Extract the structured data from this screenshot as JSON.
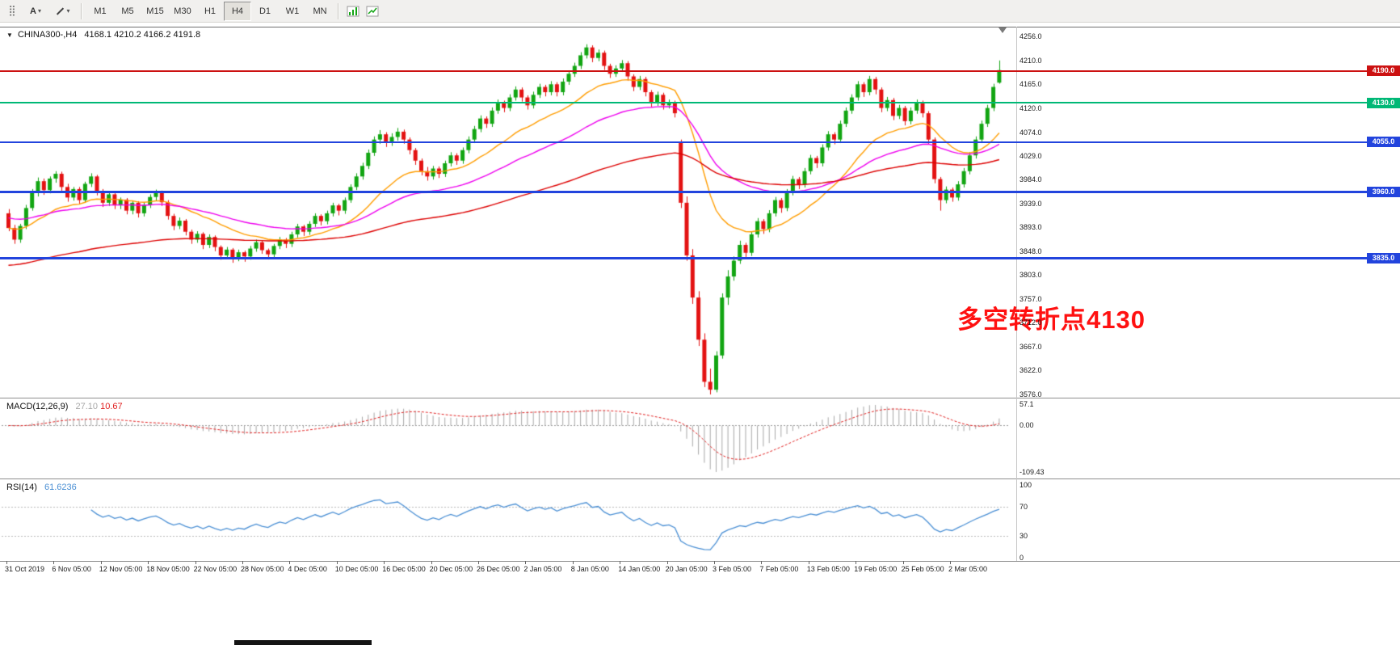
{
  "toolbar": {
    "text_tool_label": "A",
    "timeframes": [
      {
        "label": "M1",
        "active": false
      },
      {
        "label": "M5",
        "active": false
      },
      {
        "label": "M15",
        "active": false
      },
      {
        "label": "M30",
        "active": false
      },
      {
        "label": "H1",
        "active": false
      },
      {
        "label": "H4",
        "active": true
      },
      {
        "label": "D1",
        "active": false
      },
      {
        "label": "W1",
        "active": false
      },
      {
        "label": "MN",
        "active": false
      }
    ]
  },
  "chart_data": {
    "type": "candlestick",
    "symbol": "CHINA300-,H4",
    "ohlc_display": "4168.1 4210.2 4166.2 4191.8",
    "timeframe": "H4",
    "y_axis": {
      "max": 4256.0,
      "min": 3576.0,
      "ticks": [
        4256.0,
        4210.0,
        4165.0,
        4120.0,
        4074.0,
        4029.0,
        3984.0,
        3939.0,
        3893.0,
        3848.0,
        3803.0,
        3757.0,
        3712.0,
        3667.0,
        3622.0,
        3576.0
      ]
    },
    "x_axis": {
      "candles_per_label": 8,
      "labels": [
        "31 Oct 2019",
        "6 Nov 05:00",
        "12 Nov 05:00",
        "18 Nov 05:00",
        "22 Nov 05:00",
        "28 Nov 05:00",
        "4 Dec 05:00",
        "10 Dec 05:00",
        "16 Dec 05:00",
        "20 Dec 05:00",
        "26 Dec 05:00",
        "2 Jan 05:00",
        "8 Jan 05:00",
        "14 Jan 05:00",
        "20 Jan 05:00",
        "3 Feb 05:00",
        "7 Feb 05:00",
        "13 Feb 05:00",
        "19 Feb 05:00",
        "25 Feb 05:00",
        "2 Mar 05:00"
      ]
    },
    "colors": {
      "bull": "#12a512",
      "bear": "#e31212",
      "background": "#ffffff"
    },
    "levels": [
      {
        "price": 4190.0,
        "label": "4190.0",
        "color": "#cc1111",
        "width": 2
      },
      {
        "price": 4130.0,
        "label": "4130.0",
        "color": "#00b876",
        "width": 2
      },
      {
        "price": 4055.0,
        "label": "4055.0",
        "color": "#2244dd",
        "width": 2
      },
      {
        "price": 3960.0,
        "label": "3960.0",
        "color": "#2244dd",
        "width": 3
      },
      {
        "price": 3835.0,
        "label": "3835.0",
        "color": "#2244dd",
        "width": 3
      }
    ],
    "moving_averages": [
      {
        "period": 20,
        "color": "#ff9d00",
        "seed": null
      },
      {
        "period": 45,
        "color": "#ee00ee",
        "seed": 3912
      },
      {
        "period": 110,
        "color": "#dd0000",
        "seed": 3820
      }
    ],
    "annotation": {
      "text": "多空转折点4130",
      "color": "#ff1111"
    },
    "candles": [
      [
        3920,
        3928,
        3886,
        3892
      ],
      [
        3892,
        3898,
        3862,
        3870
      ],
      [
        3870,
        3900,
        3864,
        3896
      ],
      [
        3896,
        3936,
        3890,
        3930
      ],
      [
        3930,
        3966,
        3925,
        3960
      ],
      [
        3960,
        3988,
        3952,
        3981
      ],
      [
        3981,
        3986,
        3955,
        3964
      ],
      [
        3964,
        3990,
        3958,
        3986
      ],
      [
        3986,
        4000,
        3978,
        3995
      ],
      [
        3995,
        3999,
        3962,
        3970
      ],
      [
        3970,
        3976,
        3942,
        3950
      ],
      [
        3950,
        3970,
        3944,
        3966
      ],
      [
        3966,
        3970,
        3938,
        3945
      ],
      [
        3945,
        3980,
        3940,
        3976
      ],
      [
        3976,
        3996,
        3970,
        3990
      ],
      [
        3990,
        3993,
        3954,
        3961
      ],
      [
        3961,
        3966,
        3932,
        3940
      ],
      [
        3940,
        3960,
        3934,
        3956
      ],
      [
        3956,
        3959,
        3928,
        3935
      ],
      [
        3935,
        3950,
        3928,
        3946
      ],
      [
        3946,
        3949,
        3918,
        3925
      ],
      [
        3925,
        3944,
        3918,
        3940
      ],
      [
        3940,
        3943,
        3912,
        3920
      ],
      [
        3920,
        3940,
        3914,
        3936
      ],
      [
        3936,
        3956,
        3930,
        3951
      ],
      [
        3951,
        3965,
        3944,
        3960
      ],
      [
        3960,
        3963,
        3934,
        3941
      ],
      [
        3941,
        3945,
        3908,
        3915
      ],
      [
        3915,
        3919,
        3888,
        3896
      ],
      [
        3896,
        3912,
        3890,
        3906
      ],
      [
        3906,
        3909,
        3878,
        3885
      ],
      [
        3885,
        3889,
        3862,
        3870
      ],
      [
        3870,
        3886,
        3864,
        3881
      ],
      [
        3881,
        3884,
        3852,
        3860
      ],
      [
        3860,
        3880,
        3854,
        3875
      ],
      [
        3875,
        3878,
        3848,
        3856
      ],
      [
        3856,
        3859,
        3832,
        3840
      ],
      [
        3840,
        3856,
        3834,
        3851
      ],
      [
        3851,
        3854,
        3826,
        3835
      ],
      [
        3835,
        3851,
        3829,
        3846
      ],
      [
        3846,
        3849,
        3828,
        3838
      ],
      [
        3838,
        3858,
        3832,
        3853
      ],
      [
        3853,
        3870,
        3847,
        3865
      ],
      [
        3865,
        3868,
        3843,
        3850
      ],
      [
        3850,
        3853,
        3833,
        3842
      ],
      [
        3842,
        3862,
        3836,
        3858
      ],
      [
        3858,
        3875,
        3852,
        3870
      ],
      [
        3870,
        3873,
        3854,
        3862
      ],
      [
        3862,
        3885,
        3856,
        3880
      ],
      [
        3880,
        3900,
        3874,
        3895
      ],
      [
        3895,
        3898,
        3877,
        3885
      ],
      [
        3885,
        3905,
        3879,
        3900
      ],
      [
        3900,
        3920,
        3894,
        3915
      ],
      [
        3915,
        3918,
        3897,
        3905
      ],
      [
        3905,
        3925,
        3899,
        3920
      ],
      [
        3920,
        3940,
        3914,
        3935
      ],
      [
        3935,
        3938,
        3916,
        3925
      ],
      [
        3925,
        3950,
        3919,
        3945
      ],
      [
        3945,
        3975,
        3940,
        3970
      ],
      [
        3970,
        3996,
        3964,
        3990
      ],
      [
        3990,
        4016,
        3984,
        4010
      ],
      [
        4010,
        4041,
        4004,
        4035
      ],
      [
        4035,
        4066,
        4029,
        4060
      ],
      [
        4060,
        4078,
        4052,
        4070
      ],
      [
        4070,
        4074,
        4046,
        4055
      ],
      [
        4055,
        4072,
        4048,
        4065
      ],
      [
        4065,
        4082,
        4058,
        4075
      ],
      [
        4075,
        4079,
        4052,
        4060
      ],
      [
        4060,
        4064,
        4032,
        4040
      ],
      [
        4040,
        4044,
        4012,
        4020
      ],
      [
        4020,
        4024,
        3992,
        4000
      ],
      [
        4000,
        4008,
        3982,
        3990
      ],
      [
        3990,
        4010,
        3984,
        4005
      ],
      [
        4005,
        4009,
        3987,
        3995
      ],
      [
        3995,
        4020,
        3989,
        4015
      ],
      [
        4015,
        4036,
        4009,
        4030
      ],
      [
        4030,
        4034,
        4012,
        4020
      ],
      [
        4020,
        4045,
        4014,
        4040
      ],
      [
        4040,
        4066,
        4034,
        4060
      ],
      [
        4060,
        4086,
        4054,
        4080
      ],
      [
        4080,
        4106,
        4074,
        4100
      ],
      [
        4100,
        4104,
        4082,
        4090
      ],
      [
        4090,
        4121,
        4084,
        4115
      ],
      [
        4115,
        4136,
        4109,
        4130
      ],
      [
        4130,
        4134,
        4112,
        4120
      ],
      [
        4120,
        4146,
        4114,
        4140
      ],
      [
        4140,
        4161,
        4134,
        4155
      ],
      [
        4155,
        4159,
        4132,
        4140
      ],
      [
        4140,
        4144,
        4117,
        4125
      ],
      [
        4125,
        4151,
        4119,
        4145
      ],
      [
        4145,
        4166,
        4139,
        4160
      ],
      [
        4160,
        4164,
        4142,
        4150
      ],
      [
        4150,
        4171,
        4144,
        4165
      ],
      [
        4165,
        4169,
        4142,
        4150
      ],
      [
        4150,
        4176,
        4144,
        4170
      ],
      [
        4170,
        4191,
        4164,
        4185
      ],
      [
        4185,
        4206,
        4179,
        4200
      ],
      [
        4200,
        4226,
        4194,
        4220
      ],
      [
        4220,
        4241,
        4214,
        4235
      ],
      [
        4235,
        4239,
        4207,
        4215
      ],
      [
        4215,
        4231,
        4209,
        4225
      ],
      [
        4225,
        4229,
        4192,
        4200
      ],
      [
        4200,
        4204,
        4177,
        4185
      ],
      [
        4185,
        4201,
        4179,
        4195
      ],
      [
        4195,
        4211,
        4189,
        4205
      ],
      [
        4205,
        4209,
        4172,
        4180
      ],
      [
        4180,
        4184,
        4152,
        4160
      ],
      [
        4160,
        4181,
        4154,
        4175
      ],
      [
        4175,
        4179,
        4142,
        4150
      ],
      [
        4150,
        4154,
        4122,
        4130
      ],
      [
        4130,
        4151,
        4124,
        4145
      ],
      [
        4145,
        4149,
        4117,
        4125
      ],
      [
        4125,
        4136,
        4119,
        4130
      ],
      [
        4130,
        4134,
        4102,
        4110
      ],
      [
        4055,
        4060,
        3930,
        3940
      ],
      [
        3940,
        3952,
        3830,
        3840
      ],
      [
        3840,
        3852,
        3748,
        3760
      ],
      [
        3760,
        3772,
        3668,
        3680
      ],
      [
        3680,
        3692,
        3590,
        3600
      ],
      [
        3600,
        3625,
        3576,
        3585
      ],
      [
        3585,
        3658,
        3580,
        3650
      ],
      [
        3650,
        3768,
        3644,
        3760
      ],
      [
        3760,
        3812,
        3746,
        3800
      ],
      [
        3800,
        3838,
        3792,
        3830
      ],
      [
        3830,
        3868,
        3824,
        3860
      ],
      [
        3860,
        3864,
        3836,
        3845
      ],
      [
        3845,
        3886,
        3839,
        3880
      ],
      [
        3880,
        3911,
        3874,
        3905
      ],
      [
        3905,
        3909,
        3881,
        3890
      ],
      [
        3890,
        3926,
        3884,
        3920
      ],
      [
        3920,
        3951,
        3914,
        3945
      ],
      [
        3945,
        3949,
        3921,
        3930
      ],
      [
        3930,
        3966,
        3924,
        3960
      ],
      [
        3960,
        3991,
        3954,
        3985
      ],
      [
        3985,
        3989,
        3966,
        3975
      ],
      [
        3975,
        4006,
        3969,
        4000
      ],
      [
        4000,
        4031,
        3994,
        4025
      ],
      [
        4025,
        4029,
        4006,
        4015
      ],
      [
        4015,
        4051,
        4009,
        4045
      ],
      [
        4045,
        4076,
        4039,
        4070
      ],
      [
        4070,
        4074,
        4051,
        4060
      ],
      [
        4060,
        4096,
        4054,
        4090
      ],
      [
        4090,
        4121,
        4084,
        4115
      ],
      [
        4115,
        4146,
        4109,
        4140
      ],
      [
        4140,
        4171,
        4134,
        4165
      ],
      [
        4165,
        4169,
        4141,
        4150
      ],
      [
        4150,
        4181,
        4144,
        4175
      ],
      [
        4175,
        4179,
        4146,
        4155
      ],
      [
        4155,
        4159,
        4112,
        4120
      ],
      [
        4120,
        4141,
        4114,
        4135
      ],
      [
        4135,
        4139,
        4097,
        4105
      ],
      [
        4105,
        4126,
        4099,
        4120
      ],
      [
        4120,
        4124,
        4087,
        4095
      ],
      [
        4095,
        4121,
        4089,
        4115
      ],
      [
        4115,
        4136,
        4109,
        4130
      ],
      [
        4130,
        4134,
        4102,
        4110
      ],
      [
        4110,
        4114,
        4052,
        4060
      ],
      [
        4060,
        4064,
        3977,
        3985
      ],
      [
        3985,
        3989,
        3925,
        3945
      ],
      [
        3945,
        3971,
        3939,
        3965
      ],
      [
        3965,
        3969,
        3942,
        3950
      ],
      [
        3950,
        3981,
        3944,
        3975
      ],
      [
        3975,
        4006,
        3969,
        4000
      ],
      [
        4000,
        4036,
        3994,
        4030
      ],
      [
        4030,
        4066,
        4024,
        4060
      ],
      [
        4060,
        4096,
        4054,
        4090
      ],
      [
        4090,
        4126,
        4084,
        4120
      ],
      [
        4120,
        4166,
        4114,
        4160
      ],
      [
        4168.1,
        4210.2,
        4166.2,
        4191.8
      ]
    ]
  },
  "macd": {
    "label": "MACD(12,26,9)",
    "value_main": "27.10",
    "value_signal": "10.67",
    "params": {
      "fast": 12,
      "slow": 26,
      "signal": 9
    },
    "axis": {
      "max": "57.1",
      "zero": "0.00",
      "min": "-109.43"
    },
    "colors": {
      "histogram": "#a8a8a8",
      "signal": "#e02020"
    }
  },
  "rsi": {
    "label": "RSI(14)",
    "value": "61.6236",
    "period": 14,
    "axis_ticks": [
      100,
      70,
      30,
      0
    ],
    "level_lines": [
      70,
      30
    ],
    "color": "#4a8fd4"
  }
}
